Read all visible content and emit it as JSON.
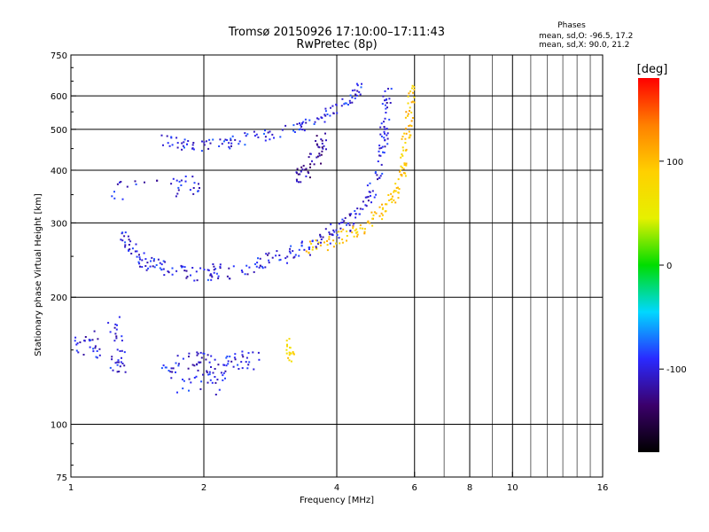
{
  "header": {
    "title_line1": "Tromsø 20150926 17:10:00–17:11:43",
    "title_line2": "RwPretec (8p)"
  },
  "phase_stats": {
    "title": "Phases",
    "line_o": "mean, sd,O: -96.5, 17.2",
    "line_x": "mean, sd,X:  90.0, 21.2"
  },
  "colorbar": {
    "label": "[deg]",
    "ticks": [
      {
        "value": 100,
        "label": "100"
      },
      {
        "value": 0,
        "label": "0"
      },
      {
        "value": -100,
        "label": "-100"
      }
    ],
    "range": [
      -180,
      180
    ],
    "colors": [
      "#000000",
      "#3b006b",
      "#2a2aff",
      "#00d8ff",
      "#00dd00",
      "#e6f000",
      "#ffd000",
      "#ff8000",
      "#ff0000"
    ]
  },
  "chart_data": {
    "type": "scatter",
    "title": "Tromsø 20150926 17:10:00–17:11:43",
    "subtitle": "RwPretec (8p)",
    "xlabel": "Frequency [MHz]",
    "ylabel": "Stationary phase Virtual Height [km]",
    "xscale": "log",
    "yscale": "log",
    "xlim": [
      1,
      16
    ],
    "ylim": [
      75,
      750
    ],
    "x_ticks": [
      1,
      2,
      4,
      6,
      8,
      10,
      16
    ],
    "y_ticks": [
      75,
      100,
      200,
      300,
      400,
      500,
      600,
      750
    ],
    "x_major_gridlines": [
      2,
      4,
      6,
      8,
      10
    ],
    "x_minor_gridlines": [
      7,
      9,
      11,
      12,
      13,
      14,
      15
    ],
    "y_gridlines": [
      100,
      200,
      300,
      400,
      500,
      600
    ],
    "grid": true,
    "colorbar_label": "[deg]",
    "series": [
      {
        "points": [
          [
            1.3,
            280
          ],
          [
            1.36,
            260
          ],
          [
            1.45,
            245
          ],
          [
            1.55,
            238
          ],
          [
            1.7,
            232
          ],
          [
            1.9,
            228
          ],
          [
            2.1,
            229
          ],
          [
            2.4,
            232
          ],
          [
            2.7,
            240
          ],
          [
            3.0,
            248
          ],
          [
            3.3,
            258
          ],
          [
            3.6,
            268
          ],
          [
            3.9,
            282
          ],
          [
            4.2,
            298
          ],
          [
            4.5,
            320
          ],
          [
            4.8,
            355
          ],
          [
            5.0,
            400
          ],
          [
            5.1,
            460
          ],
          [
            5.15,
            520
          ],
          [
            5.2,
            600
          ]
        ],
        "phase": -100,
        "spread": 0.04
      },
      {
        "points": [
          [
            1.6,
            470
          ],
          [
            1.8,
            460
          ],
          [
            2.0,
            458
          ],
          [
            2.3,
            465
          ],
          [
            2.6,
            478
          ],
          [
            3.0,
            492
          ],
          [
            3.4,
            510
          ],
          [
            3.8,
            540
          ],
          [
            4.2,
            580
          ],
          [
            4.5,
            620
          ]
        ],
        "phase": -95,
        "spread": 0.03
      },
      {
        "points": [
          [
            3.4,
            260
          ],
          [
            3.8,
            268
          ],
          [
            4.2,
            280
          ],
          [
            4.6,
            295
          ],
          [
            5.0,
            315
          ],
          [
            5.3,
            340
          ],
          [
            5.5,
            370
          ],
          [
            5.65,
            410
          ],
          [
            5.75,
            470
          ],
          [
            5.85,
            540
          ],
          [
            5.9,
            610
          ]
        ],
        "phase": 95,
        "spread": 0.035
      },
      {
        "points": [
          [
            3.2,
            385
          ],
          [
            3.4,
            395
          ],
          [
            3.6,
            425
          ],
          [
            3.7,
            470
          ]
        ],
        "phase": -120,
        "spread": 0.04
      },
      {
        "points": [
          [
            1.6,
            135
          ],
          [
            1.8,
            140
          ],
          [
            2.0,
            138
          ],
          [
            2.2,
            135
          ],
          [
            2.4,
            140
          ],
          [
            2.6,
            145
          ],
          [
            1.7,
            125
          ],
          [
            2.1,
            125
          ]
        ],
        "phase": -100,
        "spread": 0.06
      },
      {
        "points": [
          [
            1.0,
            150
          ],
          [
            1.1,
            160
          ],
          [
            1.2,
            145
          ],
          [
            1.3,
            140
          ],
          [
            1.25,
            170
          ]
        ],
        "phase": -100,
        "spread": 0.06
      },
      {
        "points": [
          [
            1.2,
            360
          ],
          [
            1.7,
            360
          ],
          [
            1.9,
            370
          ]
        ],
        "phase": -100,
        "spread": 0.05
      },
      {
        "points": [
          [
            3.1,
            155
          ],
          [
            3.15,
            145
          ]
        ],
        "phase": 80,
        "spread": 0.03
      }
    ]
  }
}
